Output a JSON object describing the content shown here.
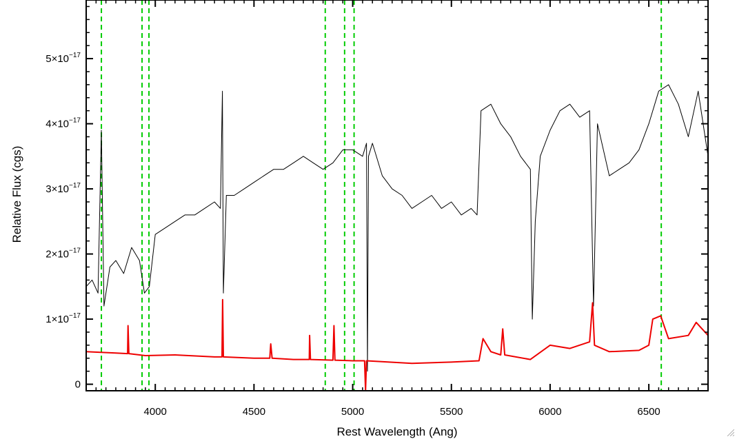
{
  "chart_data": {
    "type": "line",
    "xlabel": "Rest Wavelength (Ang)",
    "ylabel": "Relative Flux (cgs)",
    "xlim": [
      3650,
      6800
    ],
    "ylim": [
      -1e-18,
      5.9e-17
    ],
    "x_ticks": [
      4000,
      4500,
      5000,
      5500,
      6000,
      6500
    ],
    "x_tick_labels": [
      "4000",
      "4500",
      "5000",
      "5500",
      "6000",
      "6500"
    ],
    "y_ticks": [
      {
        "value": 0,
        "mantissa": "0",
        "exponent": ""
      },
      {
        "value": 1e-17,
        "mantissa": "1×10",
        "exponent": "−17"
      },
      {
        "value": 2e-17,
        "mantissa": "2×10",
        "exponent": "−17"
      },
      {
        "value": 3e-17,
        "mantissa": "3×10",
        "exponent": "−17"
      },
      {
        "value": 4e-17,
        "mantissa": "4×10",
        "exponent": "−17"
      },
      {
        "value": 5e-17,
        "mantissa": "5×10",
        "exponent": "−17"
      }
    ],
    "reference_lines": [
      3727,
      3933,
      3968,
      4861,
      4959,
      5007,
      6563
    ],
    "reference_line_color": "#00cc00",
    "series": [
      {
        "color": "#000000",
        "points": [
          [
            3650,
            1.5e-17
          ],
          [
            3680,
            1.6e-17
          ],
          [
            3710,
            1.4e-17
          ],
          [
            3727,
            3.9e-17
          ],
          [
            3740,
            1.2e-17
          ],
          [
            3770,
            1.8e-17
          ],
          [
            3800,
            1.9e-17
          ],
          [
            3840,
            1.7e-17
          ],
          [
            3880,
            2.1e-17
          ],
          [
            3920,
            1.9e-17
          ],
          [
            3945,
            1.4e-17
          ],
          [
            3970,
            1.5e-17
          ],
          [
            4000,
            2.3e-17
          ],
          [
            4050,
            2.4e-17
          ],
          [
            4100,
            2.5e-17
          ],
          [
            4150,
            2.6e-17
          ],
          [
            4200,
            2.6e-17
          ],
          [
            4250,
            2.7e-17
          ],
          [
            4300,
            2.8e-17
          ],
          [
            4330,
            2.7e-17
          ],
          [
            4340,
            4.5e-17
          ],
          [
            4345,
            1.4e-17
          ],
          [
            4360,
            2.9e-17
          ],
          [
            4400,
            2.9e-17
          ],
          [
            4450,
            3e-17
          ],
          [
            4500,
            3.1e-17
          ],
          [
            4550,
            3.2e-17
          ],
          [
            4600,
            3.3e-17
          ],
          [
            4650,
            3.3e-17
          ],
          [
            4700,
            3.4e-17
          ],
          [
            4750,
            3.5e-17
          ],
          [
            4800,
            3.4e-17
          ],
          [
            4850,
            3.3e-17
          ],
          [
            4900,
            3.4e-17
          ],
          [
            4950,
            3.6e-17
          ],
          [
            5000,
            3.6e-17
          ],
          [
            5050,
            3.5e-17
          ],
          [
            5070,
            3.7e-17
          ],
          [
            5075,
            2e-18
          ],
          [
            5080,
            3.5e-17
          ],
          [
            5100,
            3.7e-17
          ],
          [
            5150,
            3.2e-17
          ],
          [
            5200,
            3e-17
          ],
          [
            5250,
            2.9e-17
          ],
          [
            5300,
            2.7e-17
          ],
          [
            5350,
            2.8e-17
          ],
          [
            5400,
            2.9e-17
          ],
          [
            5450,
            2.7e-17
          ],
          [
            5500,
            2.8e-17
          ],
          [
            5550,
            2.6e-17
          ],
          [
            5600,
            2.7e-17
          ],
          [
            5630,
            2.6e-17
          ],
          [
            5650,
            4.2e-17
          ],
          [
            5700,
            4.3e-17
          ],
          [
            5750,
            4e-17
          ],
          [
            5800,
            3.8e-17
          ],
          [
            5850,
            3.5e-17
          ],
          [
            5900,
            3.3e-17
          ],
          [
            5910,
            1e-17
          ],
          [
            5925,
            2.5e-17
          ],
          [
            5950,
            3.5e-17
          ],
          [
            6000,
            3.9e-17
          ],
          [
            6050,
            4.2e-17
          ],
          [
            6100,
            4.3e-17
          ],
          [
            6150,
            4.1e-17
          ],
          [
            6200,
            4.2e-17
          ],
          [
            6220,
            1.2e-17
          ],
          [
            6240,
            4e-17
          ],
          [
            6300,
            3.2e-17
          ],
          [
            6350,
            3.3e-17
          ],
          [
            6400,
            3.4e-17
          ],
          [
            6450,
            3.6e-17
          ],
          [
            6500,
            4e-17
          ],
          [
            6550,
            4.5e-17
          ],
          [
            6600,
            4.6e-17
          ],
          [
            6650,
            4.3e-17
          ],
          [
            6700,
            3.8e-17
          ],
          [
            6750,
            4.5e-17
          ],
          [
            6800,
            3.5e-17
          ]
        ]
      },
      {
        "color": "#ee0000",
        "points": [
          [
            3650,
            5e-18
          ],
          [
            3800,
            4.8e-18
          ],
          [
            3860,
            4.7e-18
          ],
          [
            3862,
            9e-18
          ],
          [
            3866,
            4.7e-18
          ],
          [
            3950,
            4.4e-18
          ],
          [
            4100,
            4.5e-18
          ],
          [
            4300,
            4.2e-18
          ],
          [
            4338,
            4.2e-18
          ],
          [
            4341,
            1.3e-17
          ],
          [
            4345,
            4.2e-18
          ],
          [
            4500,
            4e-18
          ],
          [
            4580,
            4e-18
          ],
          [
            4585,
            6.2e-18
          ],
          [
            4592,
            4e-18
          ],
          [
            4700,
            3.8e-18
          ],
          [
            4780,
            3.8e-18
          ],
          [
            4782,
            7.5e-18
          ],
          [
            4786,
            3.8e-18
          ],
          [
            4900,
            3.7e-18
          ],
          [
            4905,
            9e-18
          ],
          [
            4910,
            3.7e-18
          ],
          [
            5000,
            3.6e-18
          ],
          [
            5060,
            3.6e-18
          ],
          [
            5065,
            -1e-18
          ],
          [
            5070,
            3.6e-18
          ],
          [
            5300,
            3.2e-18
          ],
          [
            5500,
            3.4e-18
          ],
          [
            5640,
            3.6e-18
          ],
          [
            5660,
            7e-18
          ],
          [
            5700,
            5e-18
          ],
          [
            5750,
            4.5e-18
          ],
          [
            5760,
            8.5e-18
          ],
          [
            5770,
            4.5e-18
          ],
          [
            5900,
            3.8e-18
          ],
          [
            6000,
            6e-18
          ],
          [
            6100,
            5.5e-18
          ],
          [
            6200,
            6.5e-18
          ],
          [
            6215,
            1.25e-17
          ],
          [
            6225,
            6e-18
          ],
          [
            6300,
            5e-18
          ],
          [
            6450,
            5.2e-18
          ],
          [
            6500,
            6e-18
          ],
          [
            6520,
            1e-17
          ],
          [
            6560,
            1.05e-17
          ],
          [
            6600,
            7e-18
          ],
          [
            6700,
            7.5e-18
          ],
          [
            6740,
            9.5e-18
          ],
          [
            6800,
            7.5e-18
          ]
        ]
      }
    ]
  },
  "window": {
    "resize_grip_icon": "resize-grip-icon"
  }
}
